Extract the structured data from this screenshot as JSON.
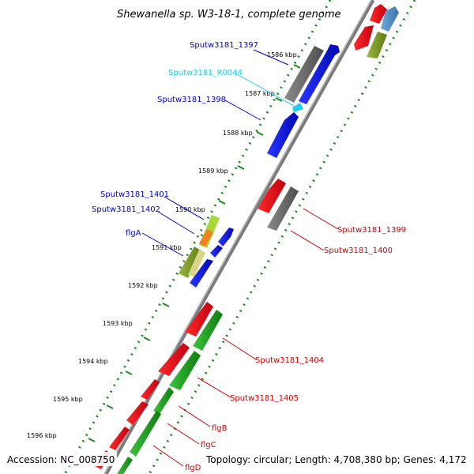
{
  "title": "Shewanella sp. W3-18-1, complete genome",
  "footer": {
    "accession": "Accession: NC_008750",
    "topology": "Topology: circular; Length: 4,708,380 bp; Genes: 4,172"
  },
  "ticks": [
    "1586 kbp",
    "1587 kbp",
    "1588 kbp",
    "1589 kbp",
    "1590 kbp",
    "1591 kbp",
    "1592 kbp",
    "1593 kbp",
    "1594 kbp",
    "1595 kbp",
    "1596 kbp"
  ],
  "labels": {
    "sputw3181_1397": "Sputw3181_1397",
    "sputw3181_r0044": "Sputw3181_R0044",
    "sputw3181_1398": "Sputw3181_1398",
    "sputw3181_1401": "Sputw3181_1401",
    "sputw3181_1402": "Sputw3181_1402",
    "flga": "flgA",
    "sputw3181_1399": "Sputw3181_1399",
    "sputw3181_1400": "Sputw3181_1400",
    "sputw3181_1404": "Sputw3181_1404",
    "sputw3181_1405": "Sputw3181_1405",
    "flgb": "flgB",
    "flgc": "flgC",
    "flgd": "flgD"
  },
  "colors": {
    "backbone": "#8a8a8a",
    "dots": "#1f8a1f",
    "label_blue": "#0000cc",
    "label_cyan": "#22ccee",
    "label_red": "#cc0000",
    "gene_blue": "#0a14e0",
    "gene_red": "#e8101a",
    "gene_gray": "#6e6e6e",
    "gene_green": "#1fa01f",
    "gene_olive": "#7a9a2a",
    "gene_steel": "#4f8ec6"
  }
}
